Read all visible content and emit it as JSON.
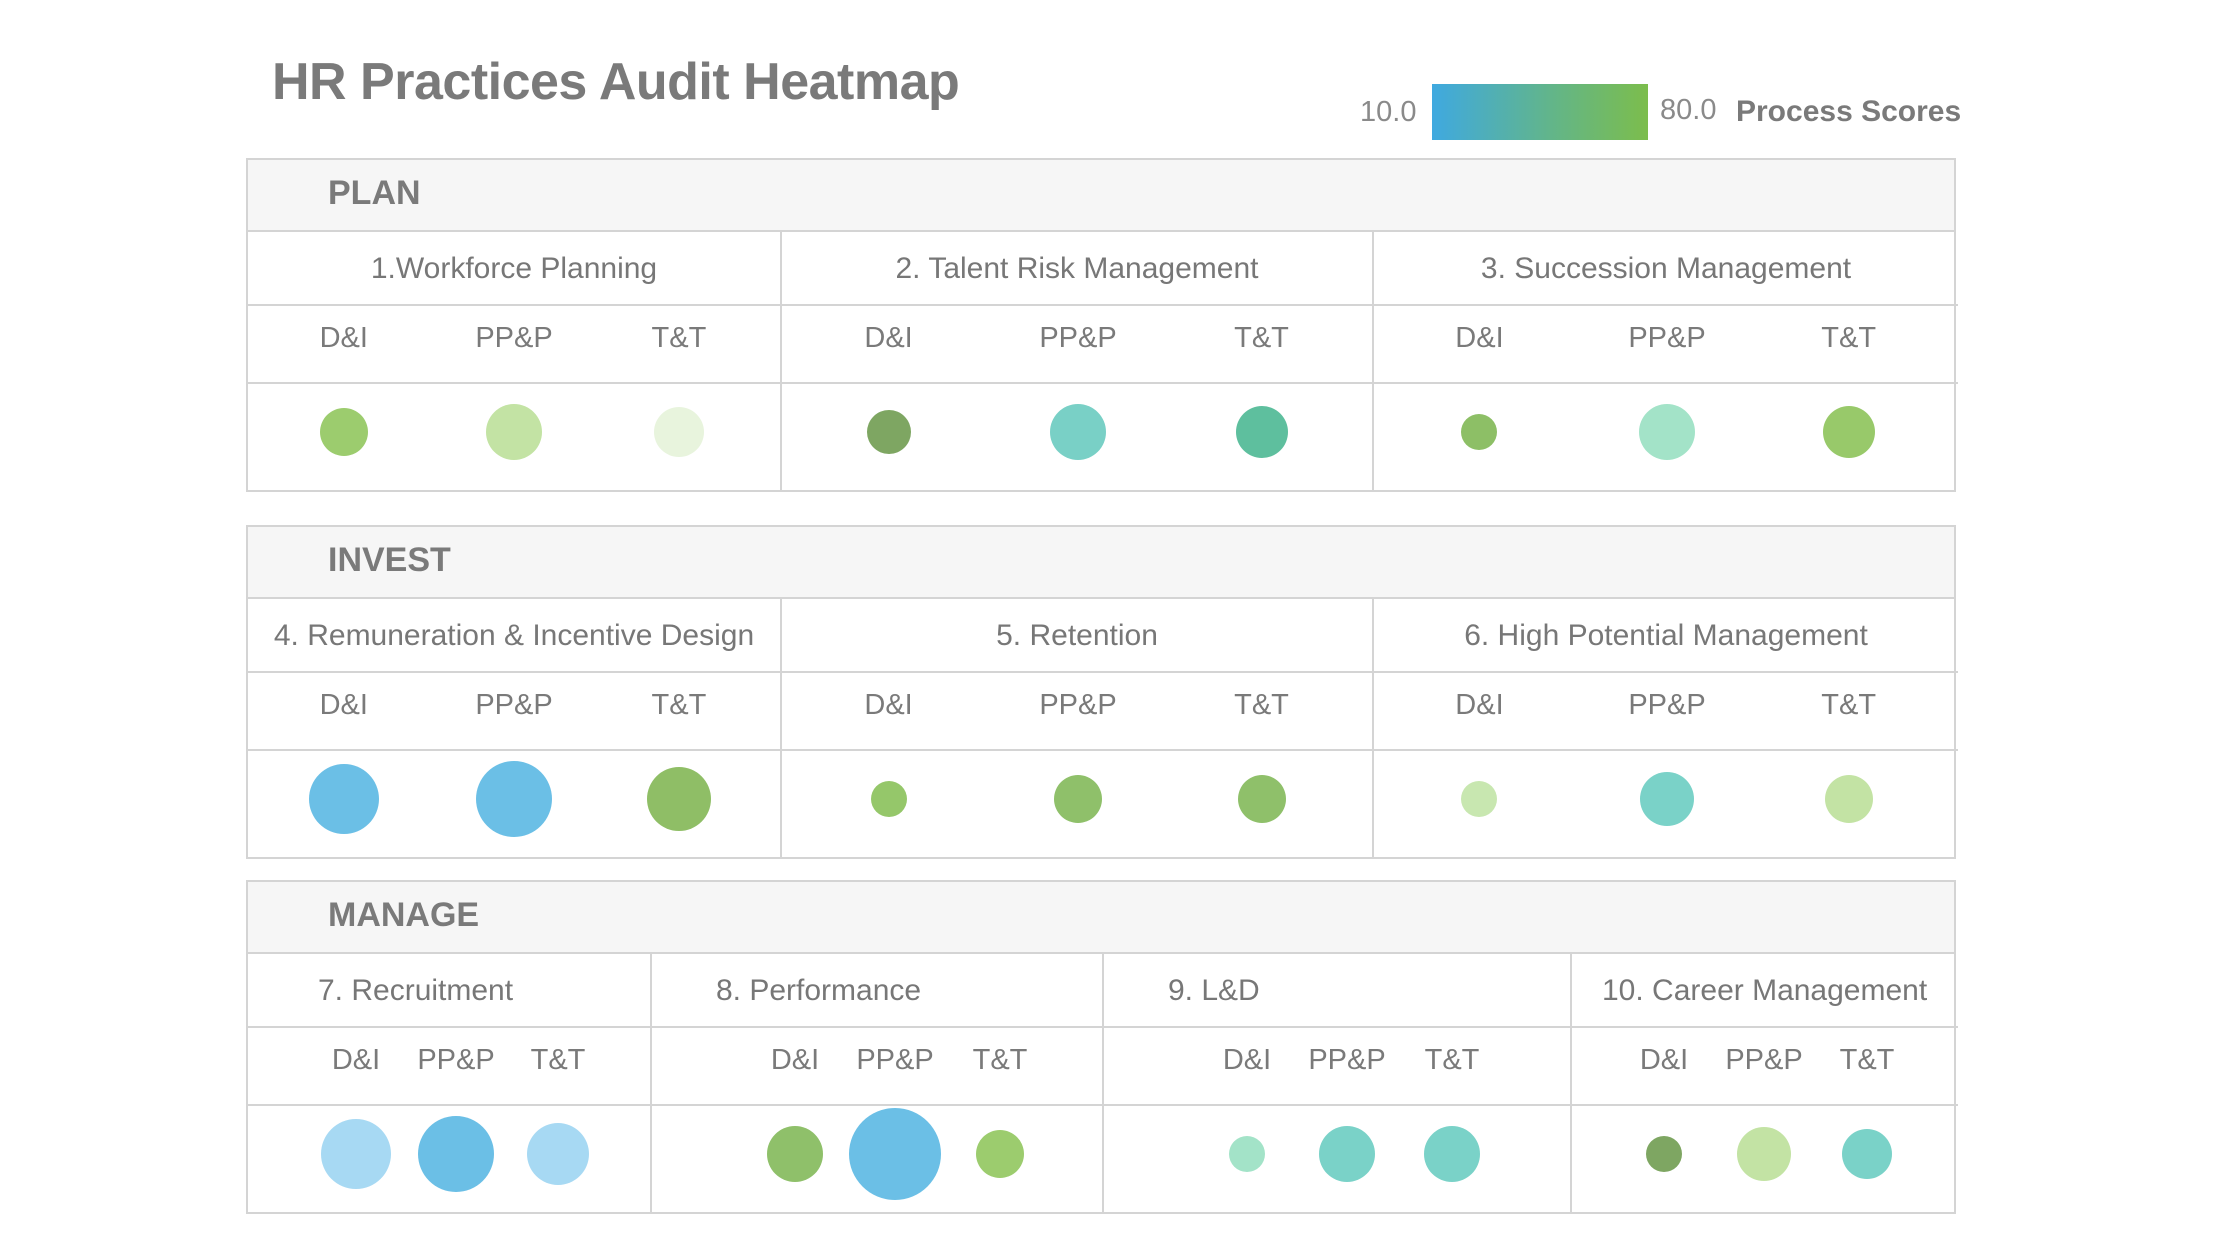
{
  "title": "HR Practices Audit Heatmap",
  "legend": {
    "min_label": "10.0",
    "max_label": "80.0",
    "label": "Process Scores",
    "gradient_colors": [
      "#3fa9e0",
      "#62b58a",
      "#7cbd4c"
    ]
  },
  "sections": [
    {
      "name": "PLAN",
      "processes": [
        {
          "title": "1.Workforce Planning",
          "metrics": [
            "D&I",
            "PP&P",
            "T&T"
          ],
          "values": [
            {
              "color": "#9ccc6e",
              "size": 48
            },
            {
              "color": "#c3e3a4",
              "size": 56
            },
            {
              "color": "#e8f4dd",
              "size": 50
            }
          ]
        },
        {
          "title": "2. Talent Risk Management",
          "metrics": [
            "D&I",
            "PP&P",
            "T&T"
          ],
          "values": [
            {
              "color": "#7ea662",
              "size": 44
            },
            {
              "color": "#79d0c6",
              "size": 56
            },
            {
              "color": "#5ebf9e",
              "size": 52
            }
          ]
        },
        {
          "title": "3. Succession Management",
          "metrics": [
            "D&I",
            "PP&P",
            "T&T"
          ],
          "values": [
            {
              "color": "#8dbf66",
              "size": 36
            },
            {
              "color": "#a3e3c8",
              "size": 56
            },
            {
              "color": "#98c96a",
              "size": 52
            }
          ]
        }
      ]
    },
    {
      "name": "INVEST",
      "processes": [
        {
          "title": "4. Remuneration & Incentive Design",
          "metrics": [
            "D&I",
            "PP&P",
            "T&T"
          ],
          "values": [
            {
              "color": "#6bbfe6",
              "size": 70
            },
            {
              "color": "#6bbfe6",
              "size": 76
            },
            {
              "color": "#8fbe66",
              "size": 64
            }
          ]
        },
        {
          "title": "5. Retention",
          "metrics": [
            "D&I",
            "PP&P",
            "T&T"
          ],
          "values": [
            {
              "color": "#95c76a",
              "size": 36
            },
            {
              "color": "#8fc06a",
              "size": 48
            },
            {
              "color": "#8fc06a",
              "size": 48
            }
          ]
        },
        {
          "title": "6. High Potential Management",
          "metrics": [
            "D&I",
            "PP&P",
            "T&T"
          ],
          "values": [
            {
              "color": "#c8e7b0",
              "size": 36
            },
            {
              "color": "#7ad2c8",
              "size": 54
            },
            {
              "color": "#c3e3a4",
              "size": 48
            }
          ]
        }
      ]
    },
    {
      "name": "MANAGE",
      "processes": [
        {
          "title": "7. Recruitment",
          "metrics": [
            "D&I",
            "PP&P",
            "T&T"
          ],
          "values": [
            {
              "color": "#a7d9f3",
              "size": 70
            },
            {
              "color": "#6bbfe6",
              "size": 76
            },
            {
              "color": "#a7d9f3",
              "size": 62
            }
          ]
        },
        {
          "title": "8. Performance",
          "metrics": [
            "D&I",
            "PP&P",
            "T&T"
          ],
          "values": [
            {
              "color": "#8fc06a",
              "size": 56
            },
            {
              "color": "#6bbfe6",
              "size": 92
            },
            {
              "color": "#9ccc6e",
              "size": 48
            }
          ]
        },
        {
          "title": "9. L&D",
          "metrics": [
            "D&I",
            "PP&P",
            "T&T"
          ],
          "values": [
            {
              "color": "#a3e3c8",
              "size": 36
            },
            {
              "color": "#7ad2c8",
              "size": 56
            },
            {
              "color": "#7ad2c8",
              "size": 56
            }
          ]
        },
        {
          "title": "10. Career Management",
          "metrics": [
            "D&I",
            "PP&P",
            "T&T"
          ],
          "values": [
            {
              "color": "#7ea662",
              "size": 36
            },
            {
              "color": "#c3e3a4",
              "size": 54
            },
            {
              "color": "#7ad2c8",
              "size": 50
            }
          ]
        }
      ]
    }
  ],
  "chart_data": {
    "type": "heatmap",
    "title": "HR Practices Audit Heatmap",
    "color_scale": {
      "min": 10.0,
      "max": 80.0,
      "label": "Process Scores"
    },
    "groups": [
      "PLAN",
      "INVEST",
      "MANAGE"
    ],
    "metrics": [
      "D&I",
      "PP&P",
      "T&T"
    ],
    "processes": [
      "1.Workforce Planning",
      "2. Talent Risk Management",
      "3. Succession Management",
      "4. Remuneration & Incentive Design",
      "5. Retention",
      "6. High Potential Management",
      "7. Recruitment",
      "8. Performance",
      "9. L&D",
      "10. Career Management"
    ]
  }
}
